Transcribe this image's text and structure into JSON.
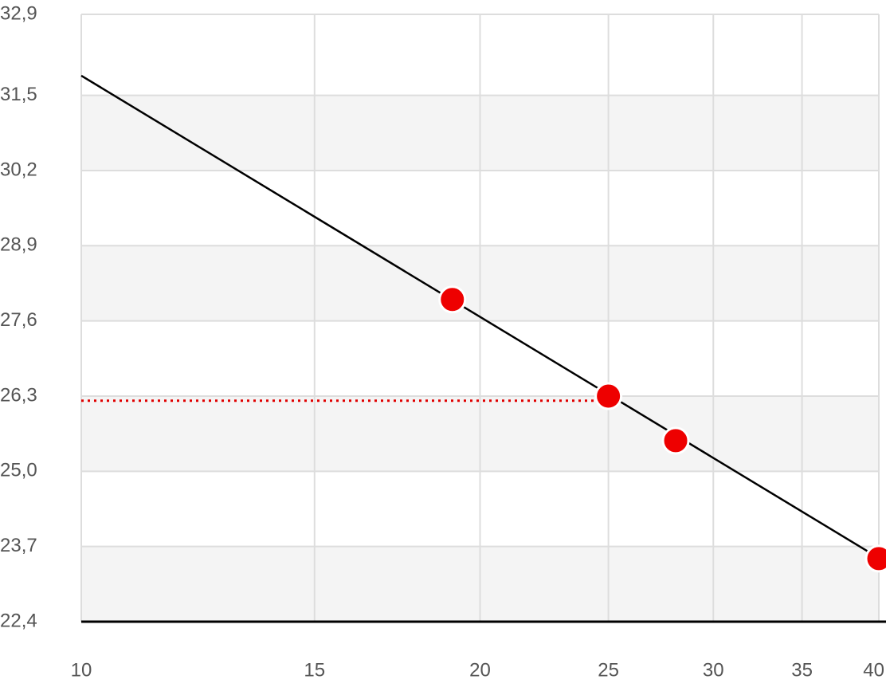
{
  "chart_data": {
    "type": "line-scatter",
    "xscale": "log",
    "xlim": [
      10,
      40
    ],
    "xticks": [
      10,
      15,
      20,
      25,
      30,
      35,
      40
    ],
    "ylim": [
      22.4,
      32.9
    ],
    "yticks": [
      {
        "value": 22.4,
        "label": "22,4"
      },
      {
        "value": 23.7,
        "label": "23,7"
      },
      {
        "value": 25.0,
        "label": "25,0"
      },
      {
        "value": 26.3,
        "label": "26,3"
      },
      {
        "value": 27.6,
        "label": "27,6"
      },
      {
        "value": 28.9,
        "label": "28,9"
      },
      {
        "value": 30.2,
        "label": "30,2"
      },
      {
        "value": 31.5,
        "label": "31,5"
      },
      {
        "value": 32.9,
        "label": "32,9"
      }
    ],
    "grid": true,
    "band_color": "#f4f4f4",
    "series": [
      {
        "kind": "line",
        "color": "#000000",
        "x": [
          10,
          40
        ],
        "values": [
          31.84,
          23.5
        ]
      },
      {
        "kind": "points",
        "color": "#ee0000",
        "x": [
          19.06,
          25,
          28.1,
          40
        ],
        "values": [
          27.97,
          26.3,
          25.53,
          23.49
        ]
      }
    ],
    "reference_line": {
      "x": 25,
      "y": 26.22,
      "color": "#e00000"
    }
  }
}
